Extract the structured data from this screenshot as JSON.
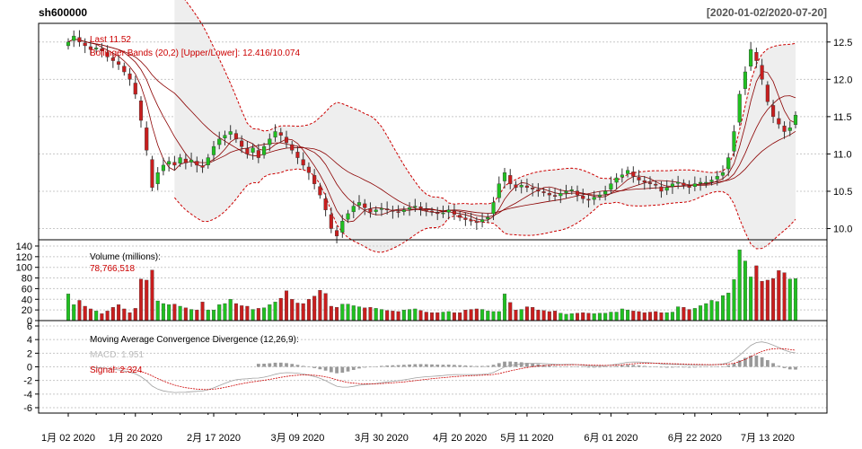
{
  "header": {
    "symbol": "sh600000",
    "date_range": "[2020-01-02/2020-07-20]"
  },
  "colors": {
    "up": "#20c020",
    "down": "#c81e1e",
    "band_fill": "#eeeeee",
    "band_line": "#cc0000",
    "ma_line": "#8b0000",
    "macd_line": "#a0a0a0",
    "signal_line": "#cc0000",
    "hist": "#999999",
    "grid": "#c8c8c8"
  },
  "panels": {
    "price": {
      "legend_last": "Last 11.52",
      "legend_bands": "Bollinger Bands (20,2) [Upper/Lower]: 12.416/10.074",
      "yticks": [
        "10.0",
        "10.5",
        "11.0",
        "11.5",
        "12.0",
        "12.5"
      ]
    },
    "volume": {
      "title": "Volume (millions):",
      "value": "78,766,518",
      "yticks": [
        "0",
        "20",
        "40",
        "60",
        "80",
        "100",
        "120",
        "140"
      ]
    },
    "macd": {
      "title": "Moving Average Convergence Divergence (12,26,9):",
      "macd_label": "MACD: 1.951",
      "signal_label": "Signal: 2.324",
      "yticks": [
        "-6",
        "-4",
        "-2",
        "0",
        "2",
        "4",
        "6"
      ]
    }
  },
  "x_axis": {
    "labels": [
      "1月 02 2020",
      "1月 20 2020",
      "2月 17 2020",
      "3月 09 2020",
      "3月 30 2020",
      "4月 20 2020",
      "5月 11 2020",
      "6月 01 2020",
      "6月 22 2020",
      "7月 13 2020"
    ]
  },
  "chart_data": {
    "type": "candlestick",
    "title": "sh600000",
    "subtitle": "[2020-01-02/2020-07-20]",
    "dates": [
      "2020-01-02",
      "2020-01-03",
      "2020-01-06",
      "2020-01-07",
      "2020-01-08",
      "2020-01-09",
      "2020-01-10",
      "2020-01-13",
      "2020-01-14",
      "2020-01-15",
      "2020-01-16",
      "2020-01-17",
      "2020-01-20",
      "2020-01-21",
      "2020-01-22",
      "2020-01-23",
      "2020-02-03",
      "2020-02-04",
      "2020-02-05",
      "2020-02-06",
      "2020-02-07",
      "2020-02-10",
      "2020-02-11",
      "2020-02-12",
      "2020-02-13",
      "2020-02-14",
      "2020-02-17",
      "2020-02-18",
      "2020-02-19",
      "2020-02-20",
      "2020-02-21",
      "2020-02-24",
      "2020-02-25",
      "2020-02-26",
      "2020-02-27",
      "2020-02-28",
      "2020-03-02",
      "2020-03-03",
      "2020-03-04",
      "2020-03-05",
      "2020-03-06",
      "2020-03-09",
      "2020-03-10",
      "2020-03-11",
      "2020-03-12",
      "2020-03-13",
      "2020-03-16",
      "2020-03-17",
      "2020-03-18",
      "2020-03-19",
      "2020-03-20",
      "2020-03-23",
      "2020-03-24",
      "2020-03-25",
      "2020-03-26",
      "2020-03-27",
      "2020-03-30",
      "2020-03-31",
      "2020-04-01",
      "2020-04-02",
      "2020-04-03",
      "2020-04-07",
      "2020-04-08",
      "2020-04-09",
      "2020-04-10",
      "2020-04-13",
      "2020-04-14",
      "2020-04-15",
      "2020-04-16",
      "2020-04-17",
      "2020-04-20",
      "2020-04-21",
      "2020-04-22",
      "2020-04-23",
      "2020-04-24",
      "2020-04-27",
      "2020-04-28",
      "2020-04-29",
      "2020-04-30",
      "2020-05-06",
      "2020-05-07",
      "2020-05-08",
      "2020-05-11",
      "2020-05-12",
      "2020-05-13",
      "2020-05-14",
      "2020-05-15",
      "2020-05-18",
      "2020-05-19",
      "2020-05-20",
      "2020-05-21",
      "2020-05-22",
      "2020-05-25",
      "2020-05-26",
      "2020-05-27",
      "2020-05-28",
      "2020-05-29",
      "2020-06-01",
      "2020-06-02",
      "2020-06-03",
      "2020-06-04",
      "2020-06-05",
      "2020-06-08",
      "2020-06-09",
      "2020-06-10",
      "2020-06-11",
      "2020-06-12",
      "2020-06-15",
      "2020-06-16",
      "2020-06-17",
      "2020-06-18",
      "2020-06-19",
      "2020-06-22",
      "2020-06-23",
      "2020-06-24",
      "2020-06-29",
      "2020-06-30",
      "2020-07-01",
      "2020-07-02",
      "2020-07-03",
      "2020-07-06",
      "2020-07-07",
      "2020-07-08",
      "2020-07-09",
      "2020-07-10",
      "2020-07-13",
      "2020-07-14",
      "2020-07-15",
      "2020-07-16",
      "2020-07-17",
      "2020-07-20"
    ],
    "close": [
      12.5,
      12.58,
      12.5,
      12.45,
      12.4,
      12.42,
      12.38,
      12.3,
      12.25,
      12.2,
      12.1,
      12.0,
      11.8,
      11.45,
      11.05,
      10.55,
      10.75,
      10.85,
      10.9,
      10.85,
      10.95,
      10.88,
      10.92,
      10.85,
      10.82,
      10.95,
      11.1,
      11.2,
      11.25,
      11.3,
      11.2,
      11.1,
      11.0,
      11.08,
      10.95,
      11.1,
      11.2,
      11.3,
      11.25,
      11.15,
      11.05,
      10.95,
      10.85,
      10.75,
      10.6,
      10.45,
      10.25,
      10.0,
      9.9,
      10.1,
      10.2,
      10.3,
      10.35,
      10.28,
      10.22,
      10.25,
      10.27,
      10.25,
      10.23,
      10.22,
      10.25,
      10.28,
      10.3,
      10.27,
      10.24,
      10.22,
      10.2,
      10.21,
      10.25,
      10.19,
      10.15,
      10.12,
      10.1,
      10.08,
      10.12,
      10.15,
      10.35,
      10.6,
      10.75,
      10.6,
      10.55,
      10.58,
      10.55,
      10.53,
      10.5,
      10.48,
      10.45,
      10.43,
      10.47,
      10.5,
      10.52,
      10.45,
      10.4,
      10.38,
      10.42,
      10.45,
      10.5,
      10.6,
      10.68,
      10.72,
      10.78,
      10.7,
      10.65,
      10.62,
      10.6,
      10.58,
      10.5,
      10.55,
      10.6,
      10.62,
      10.58,
      10.55,
      10.6,
      10.62,
      10.62,
      10.65,
      10.7,
      10.75,
      10.95,
      11.3,
      11.8,
      12.1,
      12.4,
      12.25,
      12.0,
      11.7,
      11.5,
      11.4,
      11.3,
      11.35,
      11.52
    ],
    "volume_millions": [
      50,
      30,
      38,
      27,
      22,
      18,
      13,
      18,
      25,
      30,
      22,
      15,
      23,
      78,
      76,
      95,
      37,
      32,
      30,
      31,
      27,
      24,
      21,
      20,
      35,
      20,
      20,
      30,
      32,
      40,
      32,
      28,
      27,
      21,
      23,
      24,
      30,
      35,
      42,
      56,
      40,
      33,
      32,
      40,
      46,
      57,
      51,
      27,
      25,
      31,
      31,
      28,
      26,
      24,
      25,
      23,
      21,
      19,
      18,
      17,
      20,
      21,
      22,
      19,
      16,
      15,
      15,
      16,
      17,
      15,
      15,
      20,
      21,
      22,
      21,
      18,
      17,
      17,
      50,
      34,
      20,
      21,
      26,
      25,
      20,
      19,
      17,
      18,
      14,
      12,
      13,
      14,
      15,
      14,
      13,
      14,
      14,
      16,
      16,
      22,
      20,
      18,
      17,
      15,
      16,
      17,
      15,
      15,
      16,
      26,
      25,
      21,
      23,
      28,
      32,
      38,
      36,
      47,
      52,
      77,
      133,
      112,
      82,
      103,
      74,
      76,
      79,
      94,
      90,
      78,
      79
    ],
    "bollinger": {
      "n": 20,
      "sd": 2,
      "upper": 12.416,
      "lower": 10.074
    },
    "macd_params": [
      12,
      26,
      9
    ],
    "macd_last": 1.951,
    "signal_last": 2.324,
    "y_price_range": [
      9.85,
      12.75
    ],
    "y_volume_range": [
      0,
      145
    ],
    "y_macd_range": [
      -6,
      6
    ],
    "grid": true
  }
}
